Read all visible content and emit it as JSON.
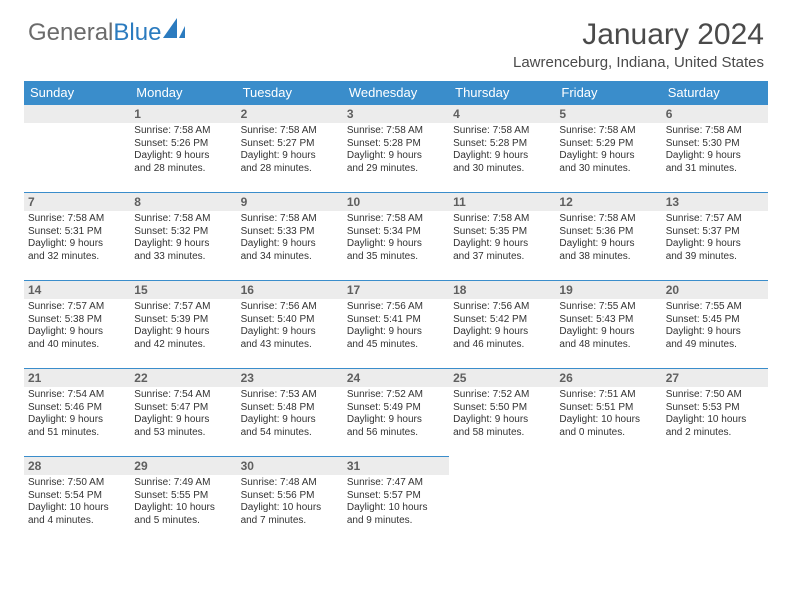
{
  "brand": {
    "part1": "General",
    "part2": "Blue"
  },
  "title": "January 2024",
  "location": "Lawrenceburg, Indiana, United States",
  "colors": {
    "header_bg": "#3a8dcb",
    "band_bg": "#ececec",
    "band_border": "#3a8dcb",
    "text": "#333333"
  },
  "weekdays": [
    "Sunday",
    "Monday",
    "Tuesday",
    "Wednesday",
    "Thursday",
    "Friday",
    "Saturday"
  ],
  "start_offset": 1,
  "days": [
    {
      "n": 1,
      "sunrise": "7:58 AM",
      "sunset": "5:26 PM",
      "day_h": 9,
      "day_m": 28
    },
    {
      "n": 2,
      "sunrise": "7:58 AM",
      "sunset": "5:27 PM",
      "day_h": 9,
      "day_m": 28
    },
    {
      "n": 3,
      "sunrise": "7:58 AM",
      "sunset": "5:28 PM",
      "day_h": 9,
      "day_m": 29
    },
    {
      "n": 4,
      "sunrise": "7:58 AM",
      "sunset": "5:28 PM",
      "day_h": 9,
      "day_m": 30
    },
    {
      "n": 5,
      "sunrise": "7:58 AM",
      "sunset": "5:29 PM",
      "day_h": 9,
      "day_m": 30
    },
    {
      "n": 6,
      "sunrise": "7:58 AM",
      "sunset": "5:30 PM",
      "day_h": 9,
      "day_m": 31
    },
    {
      "n": 7,
      "sunrise": "7:58 AM",
      "sunset": "5:31 PM",
      "day_h": 9,
      "day_m": 32
    },
    {
      "n": 8,
      "sunrise": "7:58 AM",
      "sunset": "5:32 PM",
      "day_h": 9,
      "day_m": 33
    },
    {
      "n": 9,
      "sunrise": "7:58 AM",
      "sunset": "5:33 PM",
      "day_h": 9,
      "day_m": 34
    },
    {
      "n": 10,
      "sunrise": "7:58 AM",
      "sunset": "5:34 PM",
      "day_h": 9,
      "day_m": 35
    },
    {
      "n": 11,
      "sunrise": "7:58 AM",
      "sunset": "5:35 PM",
      "day_h": 9,
      "day_m": 37
    },
    {
      "n": 12,
      "sunrise": "7:58 AM",
      "sunset": "5:36 PM",
      "day_h": 9,
      "day_m": 38
    },
    {
      "n": 13,
      "sunrise": "7:57 AM",
      "sunset": "5:37 PM",
      "day_h": 9,
      "day_m": 39
    },
    {
      "n": 14,
      "sunrise": "7:57 AM",
      "sunset": "5:38 PM",
      "day_h": 9,
      "day_m": 40
    },
    {
      "n": 15,
      "sunrise": "7:57 AM",
      "sunset": "5:39 PM",
      "day_h": 9,
      "day_m": 42
    },
    {
      "n": 16,
      "sunrise": "7:56 AM",
      "sunset": "5:40 PM",
      "day_h": 9,
      "day_m": 43
    },
    {
      "n": 17,
      "sunrise": "7:56 AM",
      "sunset": "5:41 PM",
      "day_h": 9,
      "day_m": 45
    },
    {
      "n": 18,
      "sunrise": "7:56 AM",
      "sunset": "5:42 PM",
      "day_h": 9,
      "day_m": 46
    },
    {
      "n": 19,
      "sunrise": "7:55 AM",
      "sunset": "5:43 PM",
      "day_h": 9,
      "day_m": 48
    },
    {
      "n": 20,
      "sunrise": "7:55 AM",
      "sunset": "5:45 PM",
      "day_h": 9,
      "day_m": 49
    },
    {
      "n": 21,
      "sunrise": "7:54 AM",
      "sunset": "5:46 PM",
      "day_h": 9,
      "day_m": 51
    },
    {
      "n": 22,
      "sunrise": "7:54 AM",
      "sunset": "5:47 PM",
      "day_h": 9,
      "day_m": 53
    },
    {
      "n": 23,
      "sunrise": "7:53 AM",
      "sunset": "5:48 PM",
      "day_h": 9,
      "day_m": 54
    },
    {
      "n": 24,
      "sunrise": "7:52 AM",
      "sunset": "5:49 PM",
      "day_h": 9,
      "day_m": 56
    },
    {
      "n": 25,
      "sunrise": "7:52 AM",
      "sunset": "5:50 PM",
      "day_h": 9,
      "day_m": 58
    },
    {
      "n": 26,
      "sunrise": "7:51 AM",
      "sunset": "5:51 PM",
      "day_h": 10,
      "day_m": 0
    },
    {
      "n": 27,
      "sunrise": "7:50 AM",
      "sunset": "5:53 PM",
      "day_h": 10,
      "day_m": 2
    },
    {
      "n": 28,
      "sunrise": "7:50 AM",
      "sunset": "5:54 PM",
      "day_h": 10,
      "day_m": 4
    },
    {
      "n": 29,
      "sunrise": "7:49 AM",
      "sunset": "5:55 PM",
      "day_h": 10,
      "day_m": 5
    },
    {
      "n": 30,
      "sunrise": "7:48 AM",
      "sunset": "5:56 PM",
      "day_h": 10,
      "day_m": 7
    },
    {
      "n": 31,
      "sunrise": "7:47 AM",
      "sunset": "5:57 PM",
      "day_h": 10,
      "day_m": 9
    }
  ],
  "labels": {
    "sunrise": "Sunrise:",
    "sunset": "Sunset:",
    "daylight": "Daylight:",
    "hours": "hours",
    "and": "and",
    "minutes": "minutes."
  }
}
